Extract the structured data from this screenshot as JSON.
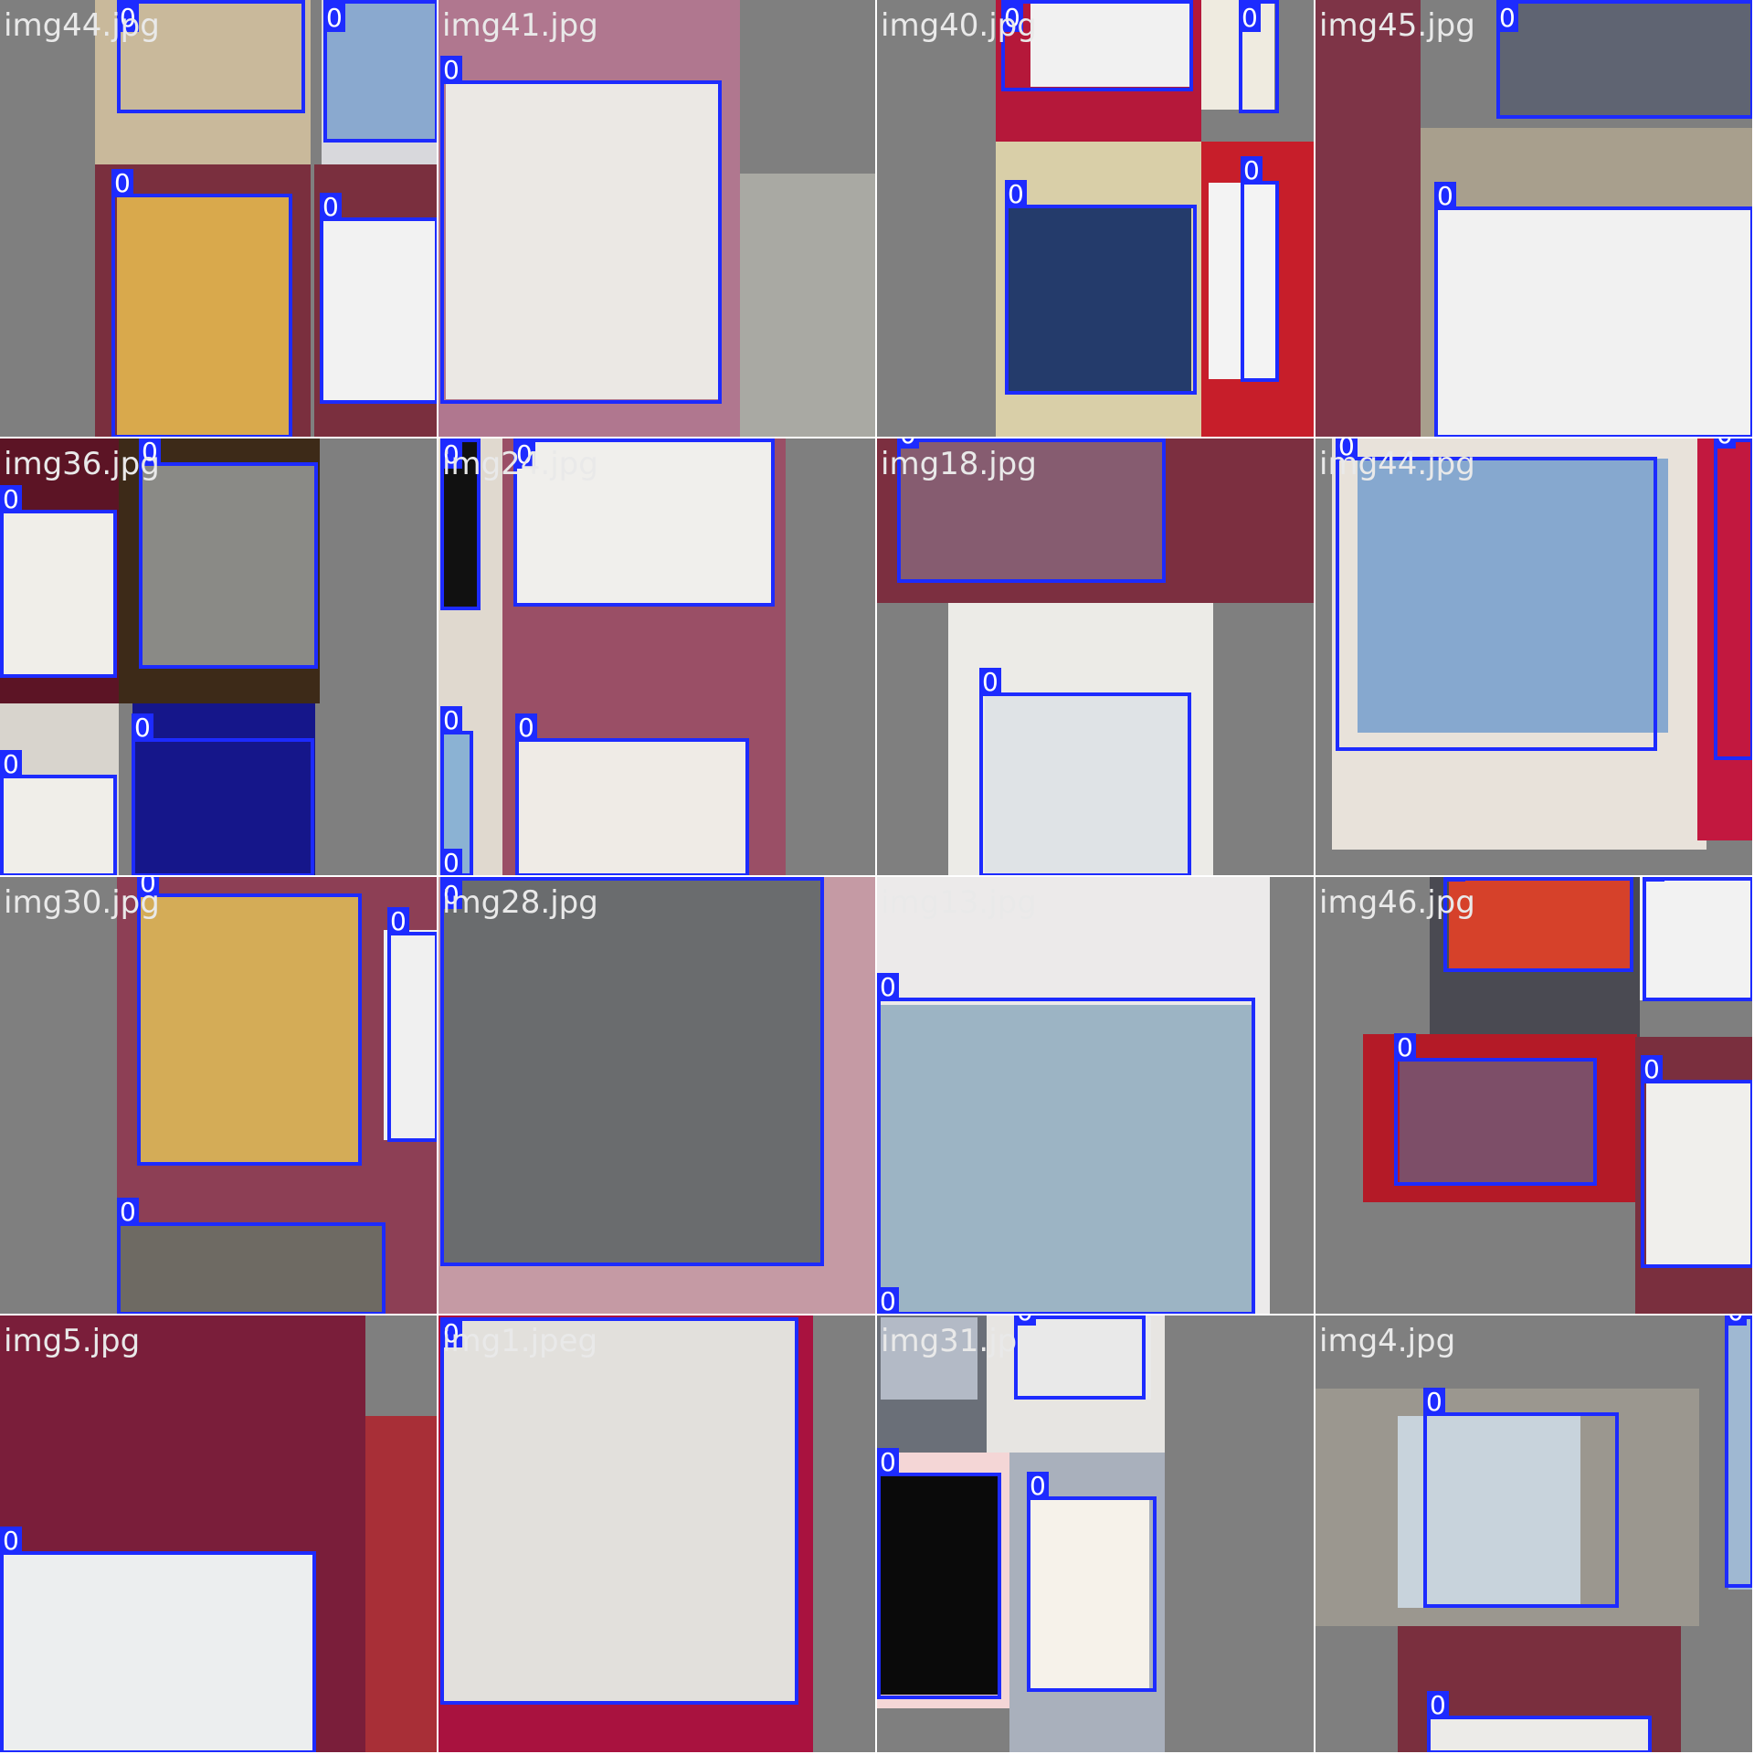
{
  "colors": {
    "box": "#1d2bff",
    "label_text": "#ffffff",
    "filename_text": "#e9e9e9",
    "pad": "#7f7f7f"
  },
  "tiles": [
    {
      "name": "img44.jpg",
      "photos": [
        {
          "c": "#c9b99b"
        },
        {
          "c": "#d8d8dc"
        },
        {
          "c": "#7a2f3e"
        },
        {
          "c": "#7a2f3e"
        },
        {
          "c": "#d9a94c"
        },
        {
          "c": "#8aa9cf"
        },
        {
          "c": "#f2f2f2"
        }
      ],
      "labels": [
        "0",
        "0",
        "0",
        "0"
      ]
    },
    {
      "name": "img41.jpg",
      "photos": [
        {
          "c": "#b0778f"
        },
        {
          "c": "#a9a9a3"
        },
        {
          "c": "#ebe8e4"
        }
      ],
      "labels": [
        "0"
      ]
    },
    {
      "name": "img40.jpg",
      "photos": [
        {
          "c": "#b5183a"
        },
        {
          "c": "#d9cfa8"
        },
        {
          "c": "#c71e2a"
        },
        {
          "c": "#f1f1f1"
        },
        {
          "c": "#243b6b"
        },
        {
          "c": "#efebe0"
        },
        {
          "c": "#f3f3f3"
        }
      ],
      "labels": [
        "0",
        "0",
        "0",
        "0"
      ]
    },
    {
      "name": "img45.jpg",
      "photos": [
        {
          "c": "#7e3447"
        },
        {
          "c": "#a89f8d"
        },
        {
          "c": "#5f6472"
        },
        {
          "c": "#f1f1f1"
        }
      ],
      "labels": [
        "0",
        "0"
      ]
    },
    {
      "name": "img36.jpg",
      "photos": [
        {
          "c": "#5c1425"
        },
        {
          "c": "#3d2a18"
        },
        {
          "c": "#f0eee9"
        },
        {
          "c": "#8a8a86"
        },
        {
          "c": "#d8d4cd"
        },
        {
          "c": "#f0eee9"
        },
        {
          "c": "#15168a"
        }
      ],
      "labels": [
        "0",
        "0",
        "0",
        "0"
      ]
    },
    {
      "name": "img24.jpg",
      "photos": [
        {
          "c": "#e0d9cf"
        },
        {
          "c": "#9a4f66"
        },
        {
          "c": "#111111"
        },
        {
          "c": "#f0efec"
        },
        {
          "c": "#8bb2d3"
        },
        {
          "c": "#efebe6"
        }
      ],
      "labels": [
        "0",
        "0",
        "0",
        "0",
        "0"
      ]
    },
    {
      "name": "img18.jpg",
      "photos": [
        {
          "c": "#7c2f40"
        },
        {
          "c": "#865c70"
        },
        {
          "c": "#ecebe7"
        },
        {
          "c": "#dfe3e6"
        }
      ],
      "labels": [
        "0",
        "0"
      ]
    },
    {
      "name": "img44.jpg",
      "photos": [
        {
          "c": "#e8e2da"
        },
        {
          "c": "#c2183f"
        },
        {
          "c": "#86a8cf"
        }
      ],
      "labels": [
        "0",
        "0"
      ]
    },
    {
      "name": "img30.jpg",
      "photos": [
        {
          "c": "#8d3f55"
        },
        {
          "c": "#f0f0f0"
        },
        {
          "c": "#d4ac57"
        },
        {
          "c": "#6e6a63"
        }
      ],
      "labels": [
        "0",
        "0",
        "0"
      ]
    },
    {
      "name": "img28.jpg",
      "photos": [
        {
          "c": "#c59aa4"
        },
        {
          "c": "#6a6c6e"
        }
      ],
      "labels": [
        "0"
      ]
    },
    {
      "name": "img13.jpg",
      "photos": [
        {
          "c": "#eceaea"
        },
        {
          "c": "#9cb4c4"
        }
      ],
      "labels": [
        "0",
        "0"
      ]
    },
    {
      "name": "img46.jpg",
      "photos": [
        {
          "c": "#4a4a52"
        },
        {
          "c": "#d6412a"
        },
        {
          "c": "#f2f2f2"
        },
        {
          "c": "#b41a27"
        },
        {
          "c": "#7d4e68"
        },
        {
          "c": "#7a2f3e"
        },
        {
          "c": "#f0efec"
        }
      ],
      "labels": [
        "0",
        "0",
        "0",
        "0"
      ]
    },
    {
      "name": "img5.jpg",
      "photos": [
        {
          "c": "#7a1e3a"
        },
        {
          "c": "#a82f37"
        },
        {
          "c": "#eceeef"
        }
      ],
      "labels": [
        "0"
      ]
    },
    {
      "name": "img1.jpeg",
      "photos": [
        {
          "c": "#a9123f"
        },
        {
          "c": "#e2e0dc"
        }
      ],
      "labels": [
        "0",
        "0"
      ]
    },
    {
      "name": "img31.jpg",
      "photos": [
        {
          "c": "#6a6f78"
        },
        {
          "c": "#f4d6d6"
        },
        {
          "c": "#e7e5e2"
        },
        {
          "c": "#a9b0bc"
        },
        {
          "c": "#e9e9e9"
        },
        {
          "c": "#0a0a0a"
        },
        {
          "c": "#b3bac6"
        },
        {
          "c": "#f6f2ea"
        }
      ],
      "labels": [
        "0",
        "0",
        "0"
      ]
    },
    {
      "name": "img4.jpg",
      "photos": [
        {
          "c": "#9b978f"
        },
        {
          "c": "#c8d3dc"
        },
        {
          "c": "#7a2f3e"
        },
        {
          "c": "#9fb8d2"
        },
        {
          "c": "#ecebe8"
        }
      ],
      "labels": [
        "0",
        "0",
        "0"
      ]
    }
  ]
}
